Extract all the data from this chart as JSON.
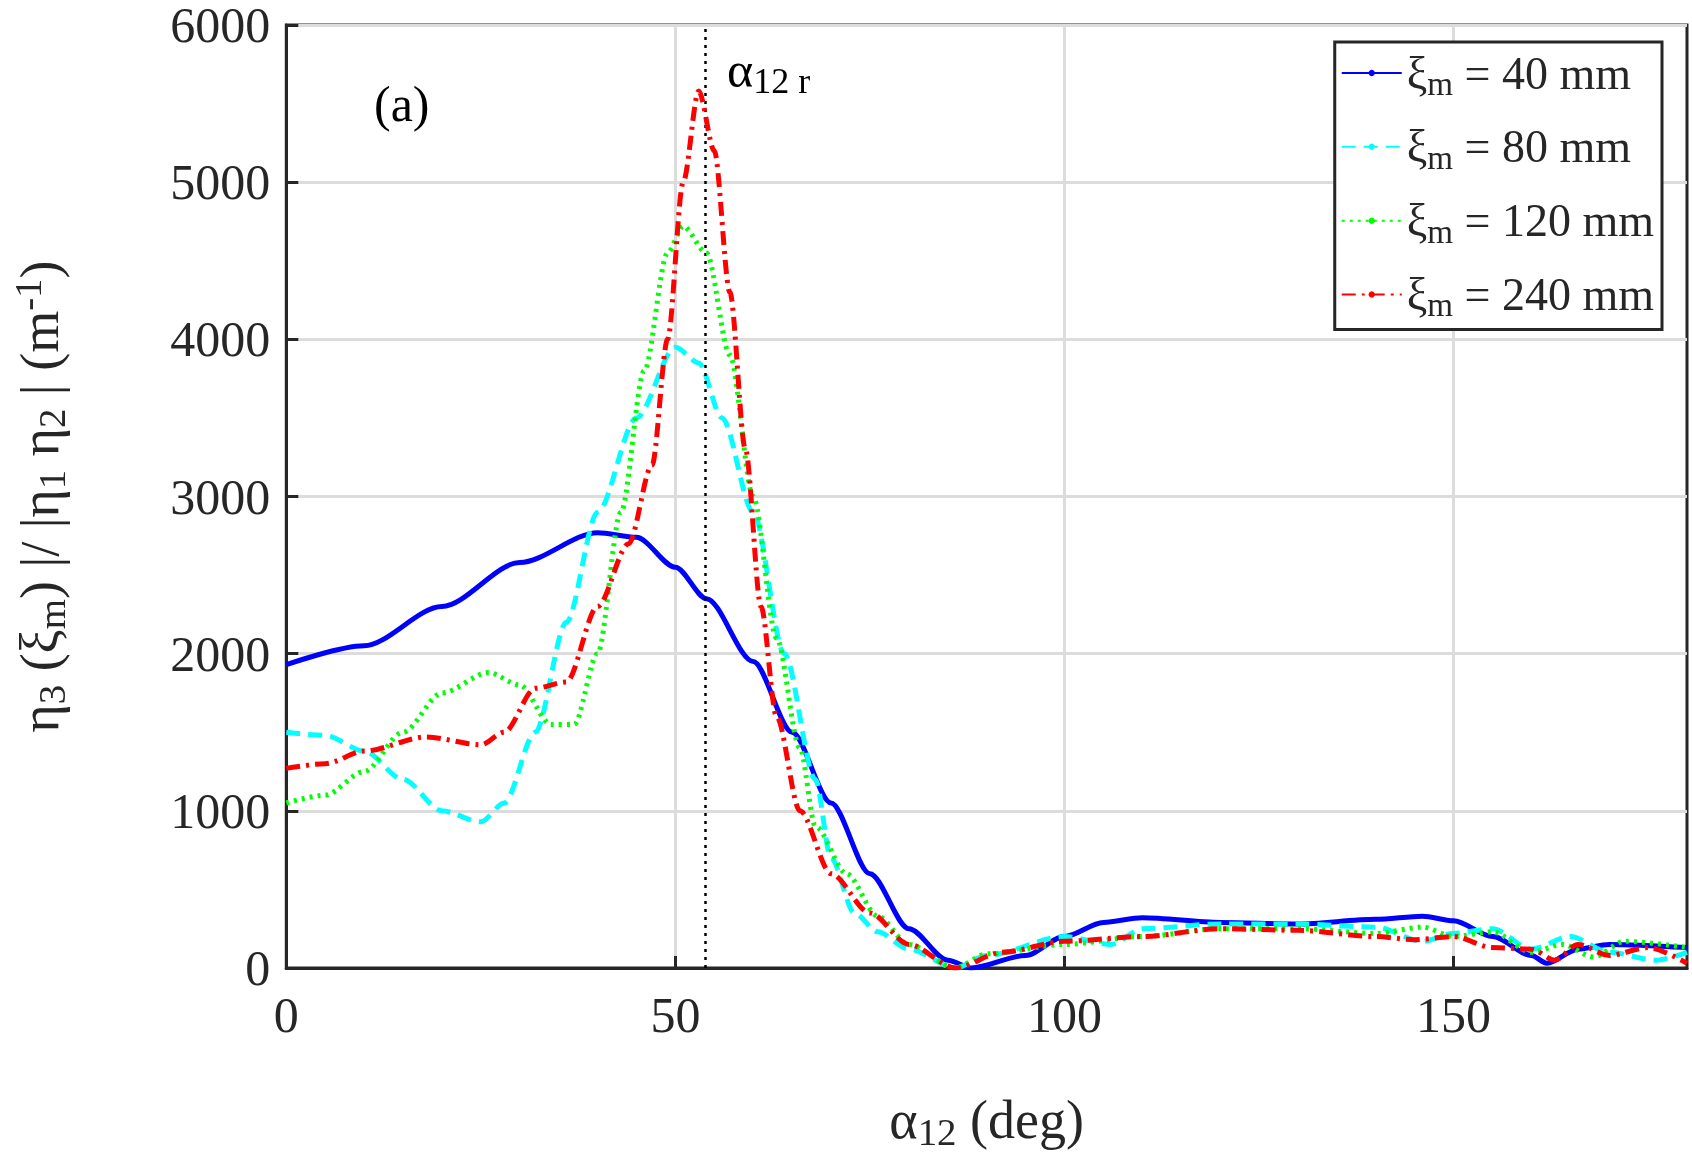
{
  "chart_data": {
    "type": "line",
    "xlabel": "α$_{12}$ (deg)",
    "ylabel": "η$_{3}$ (ξ$_{m}$) |/ |η$_{1}$ η$_{2}$ | (m$^{-1}$)",
    "xlim": [
      0,
      180
    ],
    "xticks": [
      0,
      50,
      100,
      150
    ],
    "ylim": [
      0,
      6000
    ],
    "yticks": [
      0,
      1000,
      2000,
      3000,
      4000,
      5000,
      6000
    ],
    "grid": true,
    "legend": "top right",
    "marker": "none",
    "annotations": [
      "(a)"
    ],
    "ref_lines": [
      {
        "axis": "x",
        "value": 53.8,
        "label": "α$_{12 r}$",
        "color": "#000000",
        "line_style": "dotted"
      }
    ],
    "series": [
      {
        "name": "ξ$_{m}$ = 40 mm",
        "color": "#0000ff",
        "line_style": "solid",
        "x": [
          0,
          10,
          20,
          30,
          40,
          45,
          50,
          54,
          60,
          65,
          70,
          75,
          80,
          85,
          88,
          95,
          100,
          105,
          110,
          120,
          130,
          140,
          146,
          150,
          155,
          160,
          162,
          166,
          170,
          180
        ],
        "values": [
          1930,
          2050,
          2300,
          2580,
          2770,
          2740,
          2550,
          2350,
          1950,
          1500,
          1050,
          600,
          250,
          50,
          0,
          80,
          200,
          290,
          320,
          290,
          280,
          310,
          330,
          300,
          200,
          80,
          30,
          120,
          150,
          130
        ]
      },
      {
        "name": "ξ$_{m}$ = 80 mm",
        "color": "#00ffff",
        "line_style": "dashed",
        "x": [
          0,
          5,
          10,
          15,
          20,
          25,
          28,
          32,
          36,
          40,
          45,
          50,
          53,
          56,
          60,
          64,
          68,
          70,
          73,
          76,
          80,
          86,
          90,
          100,
          106,
          110,
          120,
          130,
          140,
          146,
          150,
          155,
          160,
          165,
          170,
          176,
          180
        ],
        "values": [
          1500,
          1480,
          1380,
          1200,
          1000,
          930,
          1050,
          1500,
          2200,
          2900,
          3500,
          3950,
          3850,
          3500,
          2900,
          2000,
          1200,
          700,
          350,
          230,
          120,
          0,
          80,
          200,
          150,
          250,
          280,
          280,
          260,
          170,
          220,
          250,
          120,
          200,
          100,
          50,
          100
        ]
      },
      {
        "name": "ξ$_{m}$ = 120 mm",
        "color": "#00ff00",
        "line_style": "dotted",
        "x": [
          0,
          5,
          10,
          15,
          20,
          26,
          30,
          34,
          37,
          40,
          43,
          46,
          49,
          51,
          54,
          57,
          60,
          63,
          66,
          68,
          72,
          76,
          80,
          86,
          90,
          100,
          110,
          120,
          130,
          140,
          146,
          150,
          155,
          160,
          164,
          168,
          172,
          180
        ],
        "values": [
          1050,
          1100,
          1250,
          1500,
          1750,
          1880,
          1800,
          1550,
          1550,
          2000,
          2900,
          3800,
          4550,
          4720,
          4550,
          3900,
          3000,
          2100,
          1400,
          900,
          600,
          330,
          150,
          0,
          90,
          150,
          200,
          250,
          250,
          220,
          260,
          200,
          230,
          100,
          150,
          70,
          170,
          130
        ]
      },
      {
        "name": "ξ$_{m}$ = 240 mm",
        "color": "#ff0000",
        "line_style": "dashdot",
        "x": [
          0,
          5,
          10,
          18,
          25,
          28,
          32,
          36,
          40,
          44,
          47,
          49,
          51,
          53,
          55,
          57,
          59,
          61,
          63,
          66,
          70,
          75,
          80,
          86,
          92,
          100,
          110,
          120,
          130,
          140,
          145,
          150,
          155,
          160,
          163,
          166,
          170,
          175,
          180
        ],
        "values": [
          1270,
          1300,
          1380,
          1470,
          1420,
          1500,
          1780,
          1820,
          2300,
          2700,
          3200,
          4000,
          5000,
          5580,
          5200,
          4300,
          3300,
          2300,
          1600,
          1000,
          600,
          350,
          150,
          0,
          100,
          170,
          200,
          250,
          240,
          200,
          180,
          200,
          130,
          120,
          50,
          150,
          80,
          130,
          30
        ]
      }
    ]
  }
}
